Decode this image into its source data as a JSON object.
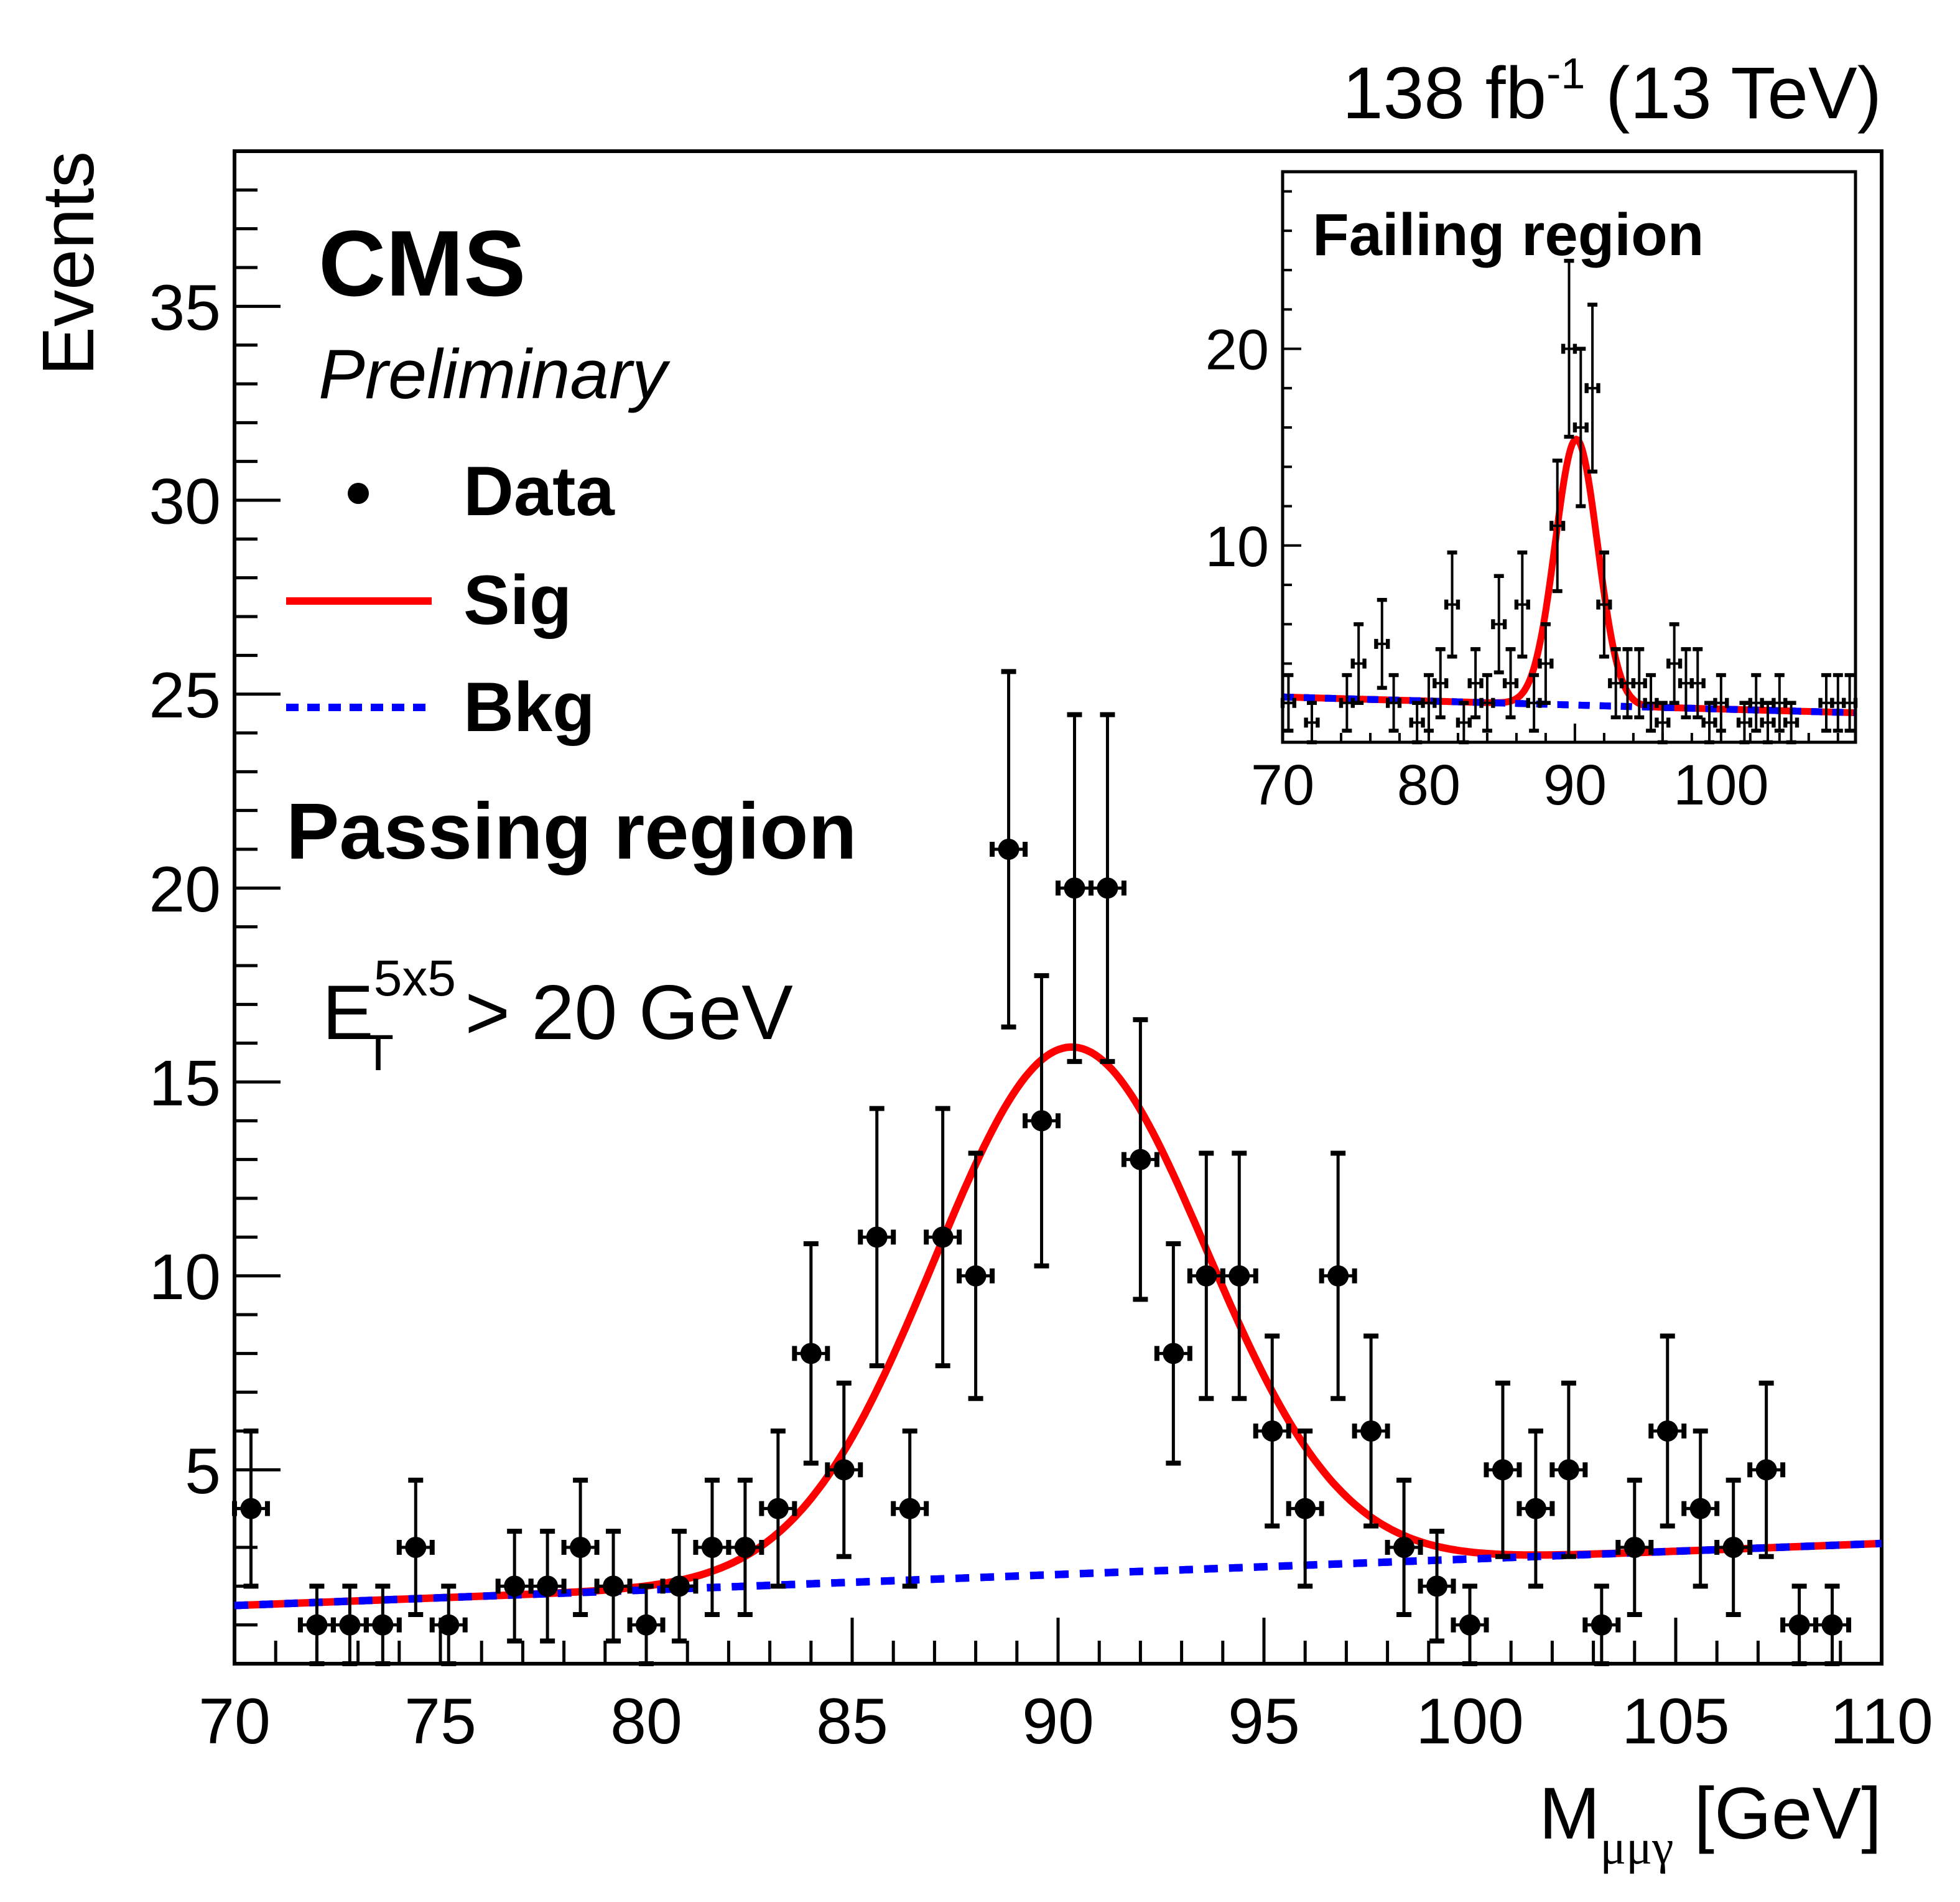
{
  "chart_data": [
    {
      "name": "passing-region",
      "type": "scatter",
      "title": "",
      "header_right": {
        "lumi": "138 fb",
        "lumi_sup": "-1",
        "energy": "(13 TeV)"
      },
      "experiment_label": "CMS",
      "experiment_sublabel": "Preliminary",
      "region_label": "Passing region",
      "cut_label": {
        "main": "E",
        "sub": "T",
        "sup": "5x5",
        "rest": "> 20 GeV"
      },
      "xlabel": {
        "main": "M",
        "sub": "μμγ",
        "rest": "[GeV]"
      },
      "ylabel": "Events",
      "xlim": [
        70,
        110
      ],
      "ylim": [
        0,
        39
      ],
      "xticks": [
        70,
        75,
        80,
        85,
        90,
        95,
        100,
        105,
        110
      ],
      "xtick_labels": [
        "70",
        "75",
        "80",
        "85",
        "90",
        "95",
        "100",
        "105",
        "110"
      ],
      "yticks": [
        5,
        10,
        15,
        20,
        25,
        30,
        35
      ],
      "ytick_labels": [
        "5",
        "10",
        "15",
        "20",
        "25",
        "30",
        "35"
      ],
      "grid": false,
      "legend": {
        "placement": "top-left",
        "entries": [
          {
            "label": "Data",
            "style": "marker",
            "color": "#000000"
          },
          {
            "label": "Sig",
            "style": "solid-line",
            "color": "#ff0000"
          },
          {
            "label": "Bkg",
            "style": "dashed-line",
            "color": "#0000ff"
          }
        ]
      },
      "bin_width": 0.8,
      "data": {
        "x": [
          70.4,
          72.0,
          72.8,
          73.6,
          74.4,
          75.2,
          76.8,
          77.6,
          78.4,
          79.2,
          80.0,
          80.8,
          81.6,
          82.4,
          83.2,
          84.0,
          84.8,
          85.6,
          86.4,
          87.2,
          88.0,
          88.8,
          89.6,
          90.4,
          91.2,
          92.0,
          92.8,
          93.6,
          94.4,
          95.2,
          96.0,
          96.8,
          97.6,
          98.4,
          99.2,
          100.0,
          100.8,
          101.6,
          102.4,
          103.2,
          104.0,
          104.8,
          105.6,
          106.4,
          107.2,
          108.0,
          108.8
        ],
        "y": [
          4,
          1,
          1,
          1,
          3,
          1,
          2,
          2,
          3,
          2,
          1,
          2,
          3,
          3,
          4,
          8,
          5,
          11,
          4,
          11,
          10,
          21,
          14,
          20,
          20,
          13,
          8,
          10,
          10,
          6,
          4,
          10,
          6,
          3,
          2,
          1,
          5,
          4,
          5,
          1,
          3,
          6,
          4,
          3,
          5,
          1,
          1
        ]
      },
      "sig_fit": {
        "color": "#ff0000",
        "peak_mass": 90.3,
        "peak_height": 15.9,
        "sigma": 3.3
      },
      "bkg_fit": {
        "color": "#0000ff",
        "y_at_xmin": 1.5,
        "y_at_xmax": 3.1
      }
    },
    {
      "name": "failing-region-inset",
      "type": "scatter",
      "region_label": "Failing region",
      "xlim": [
        70,
        109.2
      ],
      "ylim": [
        0,
        29
      ],
      "xticks": [
        70,
        80,
        90,
        100
      ],
      "xtick_labels": [
        "70",
        "80",
        "90",
        "100"
      ],
      "yticks": [
        10,
        20
      ],
      "ytick_labels": [
        "10",
        "20"
      ],
      "grid": false,
      "bin_width": 0.8,
      "data": {
        "x": [
          70.4,
          72.0,
          74.4,
          75.2,
          76.8,
          77.6,
          79.2,
          80.0,
          80.8,
          81.6,
          82.4,
          83.2,
          84.0,
          84.8,
          85.6,
          86.4,
          87.2,
          88.0,
          88.8,
          89.6,
          90.4,
          91.2,
          92.0,
          92.8,
          93.6,
          94.4,
          95.2,
          96.0,
          96.8,
          97.6,
          98.4,
          99.2,
          100.0,
          101.6,
          102.4,
          103.2,
          104.0,
          104.8,
          107.2,
          108.0,
          108.8
        ],
        "y": [
          2,
          1,
          2,
          4,
          5,
          2,
          1,
          2,
          3,
          7,
          1,
          3,
          2,
          6,
          3,
          7,
          2,
          4,
          11,
          20,
          16,
          18,
          7,
          3,
          3,
          3,
          2,
          1,
          4,
          3,
          3,
          1,
          2,
          1,
          2,
          1,
          2,
          1,
          2,
          2,
          2
        ]
      },
      "sig_fit": {
        "color": "#ff0000",
        "peak_mass": 90.1,
        "peak_height": 15.4,
        "sigma": 1.45
      },
      "bkg_fit": {
        "color": "#0000ff",
        "y_at_xmin": 2.3,
        "y_at_xmax": 1.5
      }
    }
  ]
}
